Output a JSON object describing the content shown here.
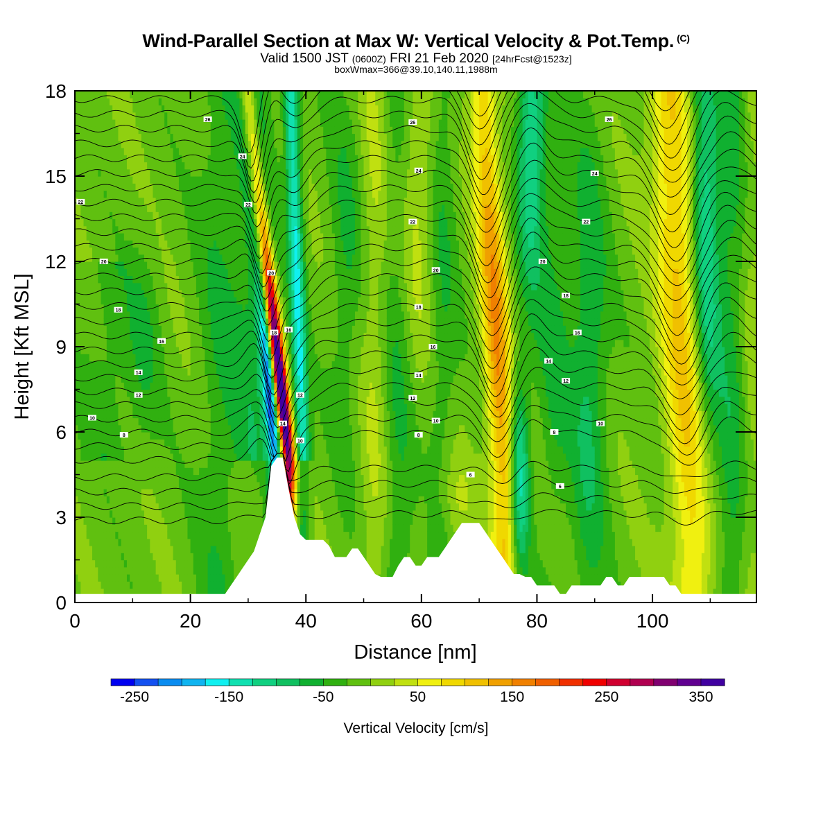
{
  "chart_data": {
    "type": "heatmap",
    "title": "Wind-Parallel Section at Max W: Vertical Velocity & Pot.Temp.",
    "title_mark": "(C)",
    "subtitle_parts": [
      "Valid 1500 JST",
      "(0600Z)",
      "FRI 21 Feb 2020",
      "[24hrFcst@1523z]"
    ],
    "subtitle2": "boxWmax=366@39.10,140.11,1988m",
    "xlabel": "Distance [nm]",
    "ylabel": "Height [Kft MSL]",
    "xlim": [
      0,
      118
    ],
    "ylim": [
      0,
      18
    ],
    "x_ticks": [
      "0",
      "20",
      "40",
      "60",
      "80",
      "100"
    ],
    "y_ticks": [
      "0",
      "3",
      "6",
      "9",
      "12",
      "15",
      "18"
    ],
    "x_tick_values": [
      0,
      20,
      40,
      60,
      80,
      100
    ],
    "y_tick_values": [
      0,
      3,
      6,
      9,
      12,
      15,
      18
    ],
    "colorbar": {
      "label": "Vertical Velocity [cm/s]",
      "tick_labels": [
        "-250",
        "-150",
        "-50",
        "50",
        "150",
        "250",
        "350"
      ],
      "tick_values": [
        -250,
        -150,
        -50,
        50,
        150,
        250,
        350
      ],
      "range": [
        -275,
        375
      ],
      "step": 25,
      "colors": [
        "#0000f0",
        "#1450f0",
        "#0a8cf0",
        "#10b4f0",
        "#10f0f0",
        "#10e0b0",
        "#10d080",
        "#10c060",
        "#10b030",
        "#30b010",
        "#60c010",
        "#90d010",
        "#c0e010",
        "#f0f010",
        "#f0d800",
        "#f0c000",
        "#f0a000",
        "#f08000",
        "#f06000",
        "#f03000",
        "#f00000",
        "#d00030",
        "#b00050",
        "#800070",
        "#600090",
        "#4000a0"
      ]
    },
    "wave_updrafts": [
      {
        "x_nm": 37,
        "max_w_cms": 366
      },
      {
        "x_nm": 72,
        "max_w_cms": 170
      },
      {
        "x_nm": 104,
        "max_w_cms": 120
      }
    ],
    "wave_downdrafts": [
      {
        "x_nm": 34.5,
        "min_w_cms": -250
      },
      {
        "x_nm": 39.5,
        "min_w_cms": -140
      },
      {
        "x_nm": 76,
        "min_w_cms": -140
      },
      {
        "x_nm": 109,
        "min_w_cms": -120
      }
    ],
    "terrain_kft": {
      "x": [
        0,
        4,
        26,
        27,
        28,
        29,
        30,
        31,
        32,
        33,
        34,
        35,
        36,
        37,
        38,
        39,
        40,
        42,
        43,
        44,
        45,
        46,
        47,
        48,
        49,
        50,
        51,
        52,
        53,
        54,
        55,
        56,
        57,
        58,
        59,
        60,
        61,
        62,
        63,
        64,
        65,
        66,
        67,
        68,
        69,
        70,
        71,
        72,
        73,
        74,
        75,
        76,
        77,
        78,
        79,
        80,
        82,
        83,
        84,
        85,
        86,
        87,
        88,
        90,
        91,
        92,
        93,
        94,
        95,
        96,
        98,
        100,
        102,
        103,
        104,
        105,
        106,
        110,
        118
      ],
      "y": [
        0.3,
        0.3,
        0.3,
        0.6,
        0.9,
        1.2,
        1.5,
        1.8,
        2.4,
        3.0,
        4.8,
        5.1,
        5.1,
        4.0,
        3.0,
        2.4,
        2.2,
        2.2,
        2.2,
        2.0,
        1.6,
        1.6,
        1.6,
        1.9,
        1.9,
        1.6,
        1.3,
        1.0,
        0.9,
        0.9,
        0.9,
        1.3,
        1.6,
        1.6,
        1.3,
        1.3,
        1.6,
        1.6,
        1.6,
        1.9,
        2.2,
        2.5,
        2.8,
        2.8,
        2.8,
        2.8,
        2.5,
        2.2,
        1.9,
        1.6,
        1.3,
        1.0,
        1.0,
        0.9,
        0.9,
        0.6,
        0.6,
        0.6,
        0.3,
        0.3,
        0.6,
        0.6,
        0.6,
        0.6,
        0.6,
        0.9,
        0.9,
        0.6,
        0.6,
        0.9,
        0.9,
        0.9,
        0.9,
        0.6,
        0.6,
        0.3,
        0.3,
        0.3,
        0.3
      ]
    },
    "theta_contours": {
      "labels": [
        {
          "text": "26",
          "x_nm": 23,
          "z_kft": 17.0
        },
        {
          "text": "24",
          "x_nm": 29,
          "z_kft": 15.7
        },
        {
          "text": "22",
          "x_nm": 1,
          "z_kft": 14.1
        },
        {
          "text": "22",
          "x_nm": 30,
          "z_kft": 14.0
        },
        {
          "text": "20",
          "x_nm": 5,
          "z_kft": 12.0
        },
        {
          "text": "18",
          "x_nm": 7.5,
          "z_kft": 10.3
        },
        {
          "text": "16",
          "x_nm": 15,
          "z_kft": 9.2
        },
        {
          "text": "14",
          "x_nm": 11,
          "z_kft": 8.1
        },
        {
          "text": "12",
          "x_nm": 11,
          "z_kft": 7.3
        },
        {
          "text": "10",
          "x_nm": 3,
          "z_kft": 6.5
        },
        {
          "text": "8",
          "x_nm": 8.5,
          "z_kft": 5.9
        },
        {
          "text": "20",
          "x_nm": 34,
          "z_kft": 11.6
        },
        {
          "text": "18",
          "x_nm": 34.5,
          "z_kft": 9.5
        },
        {
          "text": "16",
          "x_nm": 37,
          "z_kft": 9.6
        },
        {
          "text": "12",
          "x_nm": 39,
          "z_kft": 7.3
        },
        {
          "text": "10",
          "x_nm": 39,
          "z_kft": 5.7
        },
        {
          "text": "14",
          "x_nm": 36,
          "z_kft": 6.3
        },
        {
          "text": "26",
          "x_nm": 58.5,
          "z_kft": 16.9
        },
        {
          "text": "24",
          "x_nm": 59.5,
          "z_kft": 15.2
        },
        {
          "text": "22",
          "x_nm": 58.5,
          "z_kft": 13.4
        },
        {
          "text": "20",
          "x_nm": 62.5,
          "z_kft": 11.7
        },
        {
          "text": "18",
          "x_nm": 59.5,
          "z_kft": 10.4
        },
        {
          "text": "16",
          "x_nm": 62,
          "z_kft": 9.0
        },
        {
          "text": "14",
          "x_nm": 59.5,
          "z_kft": 8.0
        },
        {
          "text": "12",
          "x_nm": 58.5,
          "z_kft": 7.2
        },
        {
          "text": "10",
          "x_nm": 62.5,
          "z_kft": 6.4
        },
        {
          "text": "8",
          "x_nm": 59.5,
          "z_kft": 5.9
        },
        {
          "text": "6",
          "x_nm": 68.5,
          "z_kft": 4.5
        },
        {
          "text": "26",
          "x_nm": 92.5,
          "z_kft": 17.0
        },
        {
          "text": "24",
          "x_nm": 90,
          "z_kft": 15.1
        },
        {
          "text": "22",
          "x_nm": 88.5,
          "z_kft": 13.4
        },
        {
          "text": "20",
          "x_nm": 81,
          "z_kft": 12.0
        },
        {
          "text": "18",
          "x_nm": 85,
          "z_kft": 10.8
        },
        {
          "text": "16",
          "x_nm": 87,
          "z_kft": 9.5
        },
        {
          "text": "14",
          "x_nm": 82,
          "z_kft": 8.5
        },
        {
          "text": "12",
          "x_nm": 85,
          "z_kft": 7.8
        },
        {
          "text": "10",
          "x_nm": 91,
          "z_kft": 6.3
        },
        {
          "text": "8",
          "x_nm": 83,
          "z_kft": 6.0
        },
        {
          "text": "6",
          "x_nm": 84,
          "z_kft": 4.1
        }
      ]
    }
  }
}
